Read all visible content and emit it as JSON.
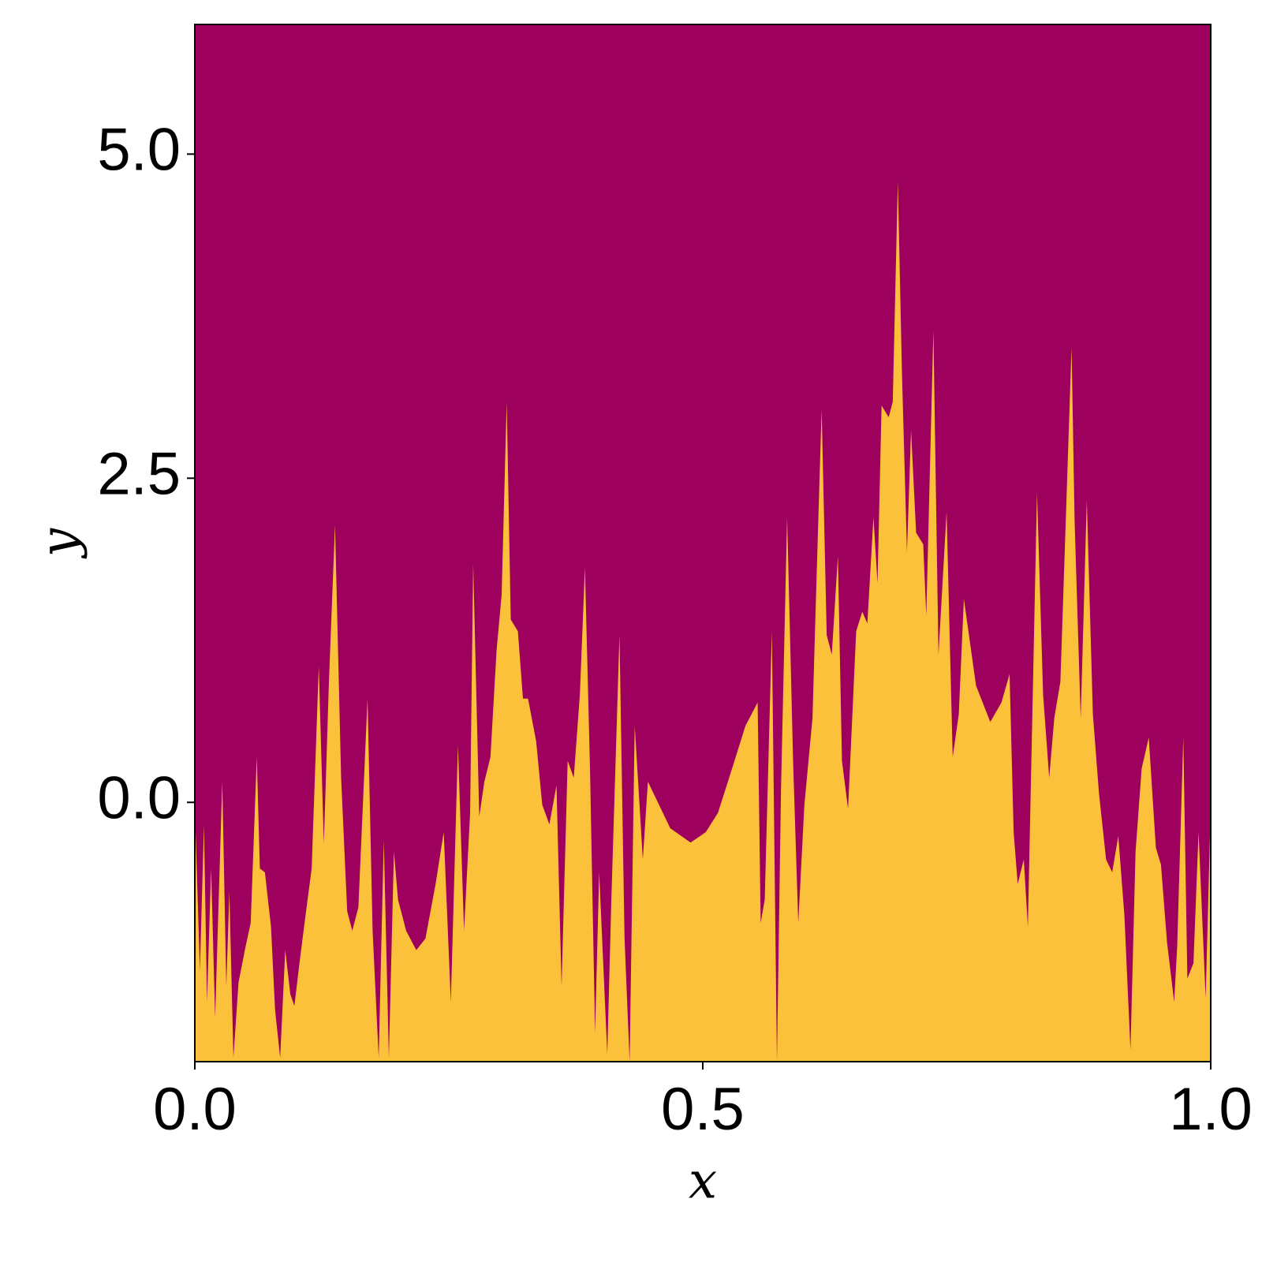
{
  "chart_data": {
    "type": "area",
    "xlabel": "x",
    "ylabel": "y",
    "color": "#fcc13a",
    "background": "#9e005d",
    "xlim": [
      0,
      1
    ],
    "ylim": [
      -2,
      6
    ],
    "xticks": [
      {
        "value": 0,
        "label": "0.0"
      },
      0.5,
      {
        "value": 1,
        "label": "1.0"
      }
    ],
    "yticks": [
      {
        "value": 0,
        "label": "0.0"
      },
      2.5,
      {
        "value": 5,
        "label": "5.0"
      }
    ],
    "x": [
      0,
      0.005,
      0.009,
      0.012,
      0.016,
      0.02,
      0.027,
      0.031,
      0.034,
      0.038,
      0.043,
      0.05,
      0.055,
      0.061,
      0.064,
      0.069,
      0.075,
      0.079,
      0.084,
      0.089,
      0.094,
      0.098,
      0.103,
      0.109,
      0.115,
      0.122,
      0.127,
      0.132,
      0.138,
      0.144,
      0.15,
      0.155,
      0.161,
      0.17,
      0.175,
      0.181,
      0.186,
      0.191,
      0.196,
      0.2,
      0.208,
      0.218,
      0.227,
      0.237,
      0.245,
      0.252,
      0.259,
      0.265,
      0.271,
      0.274,
      0.28,
      0.285,
      0.291,
      0.297,
      0.302,
      0.307,
      0.311,
      0.318,
      0.323,
      0.328,
      0.336,
      0.342,
      0.349,
      0.356,
      0.361,
      0.367,
      0.373,
      0.379,
      0.384,
      0.389,
      0.394,
      0.398,
      0.406,
      0.41,
      0.418,
      0.423,
      0.428,
      0.433,
      0.441,
      0.446,
      0.457,
      0.468,
      0.488,
      0.503,
      0.515,
      0.53,
      0.542,
      0.554,
      0.557,
      0.561,
      0.568,
      0.573,
      0.577,
      0.583,
      0.589,
      0.594,
      0.6,
      0.608,
      0.611,
      0.617,
      0.622,
      0.627,
      0.633,
      0.637,
      0.643,
      0.651,
      0.657,
      0.662,
      0.668,
      0.672,
      0.676,
      0.683,
      0.687,
      0.692,
      0.696,
      0.701,
      0.705,
      0.71,
      0.717,
      0.72,
      0.727,
      0.732,
      0.74,
      0.746,
      0.752,
      0.757,
      0.769,
      0.783,
      0.794,
      0.802,
      0.806,
      0.81,
      0.816,
      0.82,
      0.829,
      0.835,
      0.841,
      0.846,
      0.852,
      0.863,
      0.866,
      0.872,
      0.878,
      0.884,
      0.89,
      0.897,
      0.903,
      0.909,
      0.915,
      0.921,
      0.926,
      0.932,
      0.939,
      0.946,
      0.951,
      0.957,
      0.964,
      0.967,
      0.973,
      0.977,
      0.983,
      0.988,
      0.995,
      1
    ],
    "values": [
      -0.02,
      -1.3,
      -0.17,
      -1.54,
      -0.51,
      -1.66,
      0.16,
      -1.42,
      -0.69,
      -1.97,
      -1.39,
      -1.11,
      -0.93,
      0.35,
      -0.51,
      -0.54,
      -0.96,
      -1.6,
      -1.97,
      -1.14,
      -1.48,
      -1.57,
      -1.24,
      -0.87,
      -0.51,
      1.05,
      -0.32,
      0.93,
      2.14,
      0.19,
      -0.84,
      -0.99,
      -0.81,
      0.8,
      -0.99,
      -1.97,
      -0.29,
      -1.97,
      -0.38,
      -0.75,
      -0.99,
      -1.14,
      -1.05,
      -0.63,
      -0.23,
      -1.54,
      0.44,
      -0.99,
      -0.08,
      1.84,
      -0.11,
      0.16,
      0.35,
      1.17,
      1.6,
      3.09,
      1.41,
      1.32,
      0.8,
      0.8,
      0.47,
      -0.02,
      -0.17,
      0.13,
      -1.42,
      0.32,
      0.19,
      0.83,
      1.81,
      0.26,
      -1.78,
      -0.54,
      -1.94,
      -0.75,
      1.29,
      -1.05,
      -2.0,
      0.59,
      -0.44,
      0.16,
      -0.02,
      -0.2,
      -0.31,
      -0.23,
      -0.08,
      0.29,
      0.59,
      0.77,
      -0.93,
      -0.75,
      1.32,
      -2.0,
      0.1,
      2.2,
      0.29,
      -0.93,
      -0.02,
      0.65,
      1.47,
      3.03,
      1.29,
      1.14,
      1.9,
      0.32,
      -0.05,
      1.32,
      1.47,
      1.38,
      2.2,
      1.69,
      3.06,
      2.97,
      3.09,
      4.79,
      3.33,
      1.93,
      2.87,
      2.08,
      1.99,
      1.44,
      3.64,
      1.14,
      2.24,
      0.35,
      0.68,
      1.57,
      0.9,
      0.62,
      0.77,
      0.99,
      -0.23,
      -0.63,
      -0.44,
      -0.96,
      2.39,
      0.83,
      0.19,
      0.65,
      0.93,
      3.51,
      2.17,
      0.65,
      2.33,
      0.68,
      0.07,
      -0.44,
      -0.54,
      -0.26,
      -0.87,
      -1.91,
      -0.38,
      0.26,
      0.5,
      -0.35,
      -0.48,
      -1.08,
      -1.54,
      -1.11,
      0.5,
      -1.36,
      -1.24,
      -0.23,
      -1.51,
      -0.02
    ]
  }
}
